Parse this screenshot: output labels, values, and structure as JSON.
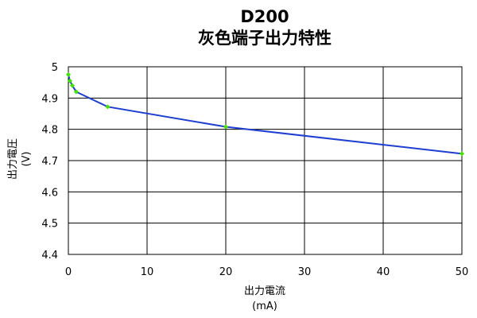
{
  "chart_data": {
    "type": "line",
    "title": "D200",
    "subtitle": "灰色端子出力特性",
    "xlabel": "出力電流",
    "xlabel_unit": "(mA)",
    "ylabel": "出力電圧",
    "ylabel_unit": "(V)",
    "xlim": [
      0,
      50
    ],
    "ylim": [
      4.4,
      5
    ],
    "x_ticks": [
      0,
      10,
      20,
      30,
      40,
      50
    ],
    "y_ticks": [
      4.4,
      4.5,
      4.6,
      4.7,
      4.8,
      4.9,
      5
    ],
    "x_tick_labels": [
      "0",
      "10",
      "20",
      "30",
      "40",
      "50"
    ],
    "y_tick_labels": [
      "4.4",
      "4.5",
      "4.6",
      "4.7",
      "4.8",
      "4.9",
      "5"
    ],
    "grid": true,
    "legend": "none",
    "series": [
      {
        "x": [
          0,
          0.2,
          0.5,
          1,
          5,
          20,
          50
        ],
        "y": [
          4.975,
          4.955,
          4.94,
          4.92,
          4.872,
          4.808,
          4.722
        ]
      }
    ],
    "colors": {
      "line": "#1f3fd0",
      "marker": "#44e000",
      "grid": "#000000",
      "frame": "#000000"
    }
  }
}
